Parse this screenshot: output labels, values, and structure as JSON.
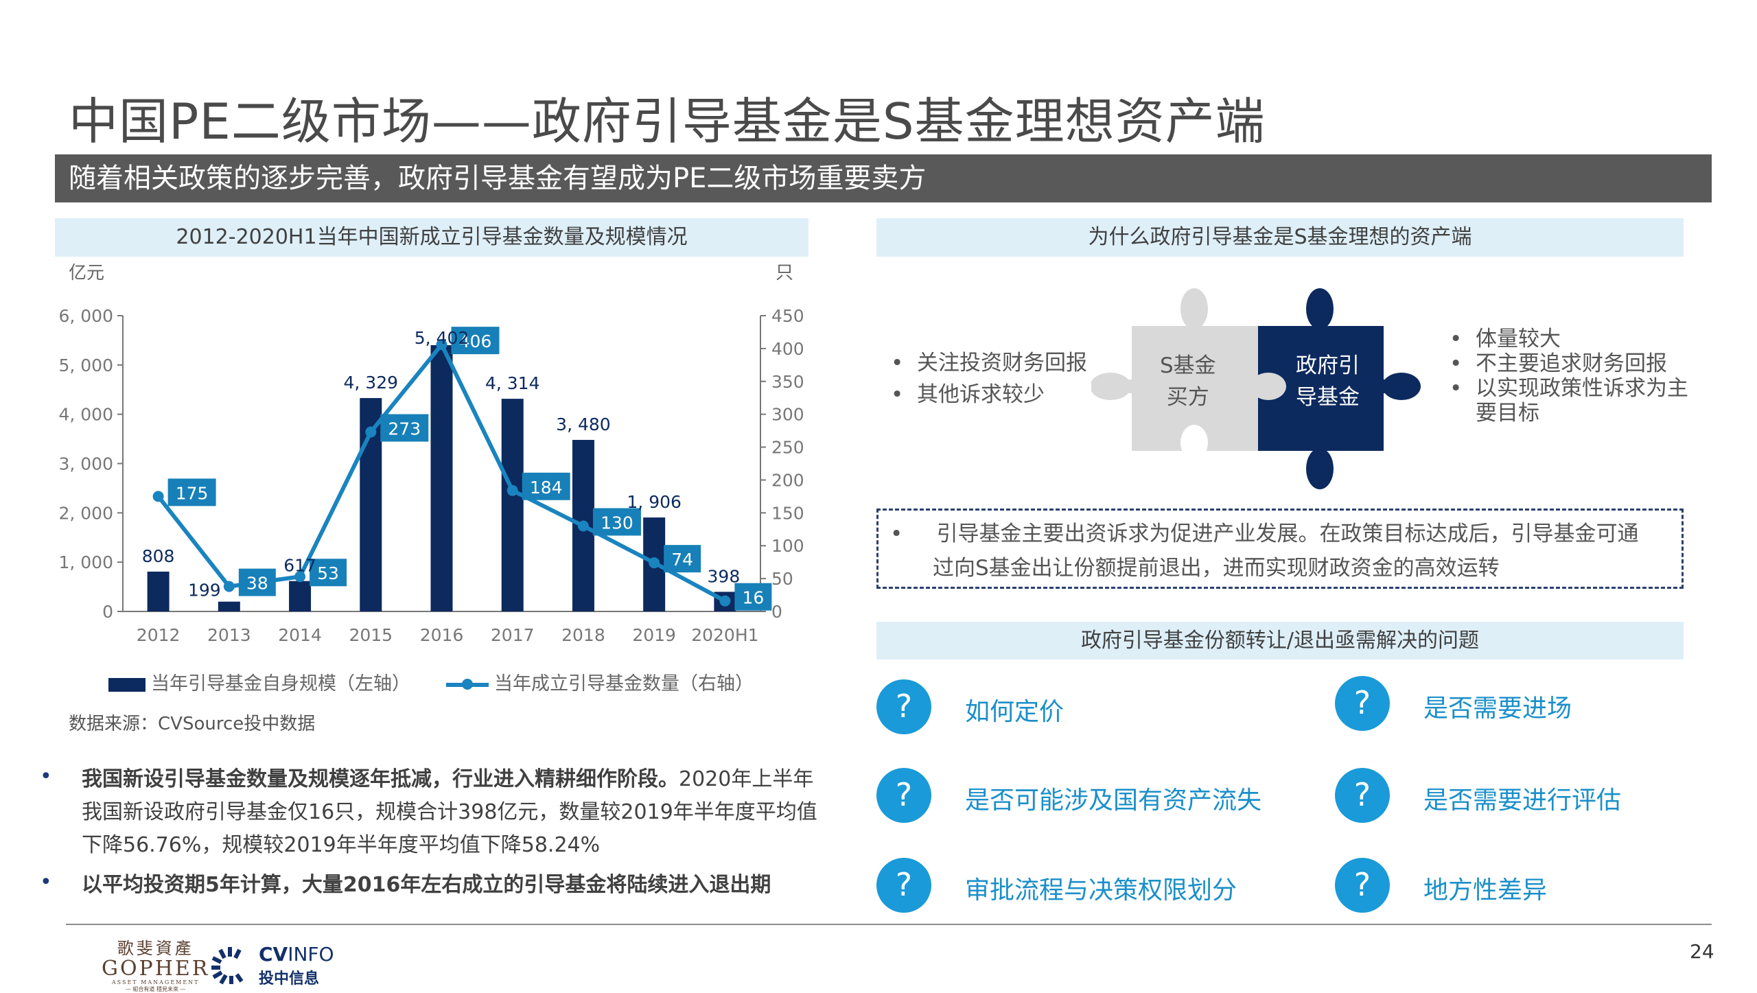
{
  "title": "中国PE二级市场——政府引导基金是S基金理想资产端",
  "banner": "随着相关政策的逐步完善，政府引导基金有望成为PE二级市场重要卖方",
  "left_panel": {
    "header": "2012-2020H1当年中国新成立引导基金数量及规模情况",
    "source": "数据来源：CVSource投中数据",
    "bullets": [
      {
        "bold": "我国新设引导基金数量及规模逐年抵减，行业进入精耕细作阶段。",
        "text": "2020年上半年我国新设政府引导基金仅16只，规模合计398亿元，数量较2019年半年度平均值下降56.76%，规模较2019年半年度平均值下降58.24%"
      },
      {
        "bold": "以平均投资期5年计算，大量2016年左右成立的引导基金将陆续进入退出期",
        "text": ""
      }
    ]
  },
  "chart_data": {
    "type": "bar+line",
    "categories": [
      "2012",
      "2013",
      "2014",
      "2015",
      "2016",
      "2017",
      "2018",
      "2019",
      "2020H1"
    ],
    "series": [
      {
        "name": "当年引导基金自身规模（左轴）",
        "type": "bar",
        "axis": "left",
        "values": [
          808,
          199,
          617,
          4329,
          5402,
          4314,
          3480,
          1906,
          398
        ],
        "labels": [
          "808",
          "199",
          "617",
          "4, 329",
          "5, 402",
          "4, 314",
          "3, 480",
          "1, 906",
          "398"
        ],
        "color": "#0c2a5e"
      },
      {
        "name": "当年成立引导基金数量（右轴）",
        "type": "line",
        "axis": "right",
        "values": [
          175,
          38,
          53,
          273,
          406,
          184,
          130,
          74,
          16
        ],
        "color": "#1a84bf"
      }
    ],
    "left_axis": {
      "unit": "亿元",
      "range": [
        0,
        6000
      ],
      "ticks": [
        "0",
        "1, 000",
        "2, 000",
        "3, 000",
        "4, 000",
        "5, 000",
        "6, 000"
      ]
    },
    "right_axis": {
      "unit": "只",
      "range": [
        0,
        450
      ],
      "ticks": [
        "0",
        "50",
        "100",
        "150",
        "200",
        "250",
        "300",
        "350",
        "400",
        "450"
      ]
    },
    "grid": false,
    "legend_position": "bottom"
  },
  "right_panel": {
    "header": "为什么政府引导基金是S基金理想的资产端",
    "left_bullets": [
      "关注投资财务回报",
      "其他诉求较少"
    ],
    "puzzle_left": [
      "S基金",
      "买方"
    ],
    "puzzle_right": [
      "政府引",
      "导基金"
    ],
    "right_bullets": [
      "体量较大",
      "不主要追求财务回报",
      "以实现政策性诉求为主",
      "要目标"
    ],
    "dashed_note": [
      "引导基金主要出资诉求为促进产业发展。在政策目标达成后，引导基金可通",
      "过向S基金出让份额提前退出，进而实现财政资金的高效运转"
    ],
    "issues_header": "政府引导基金份额转让/退出亟需解决的问题",
    "question_mark": "?",
    "issues": [
      "如何定价",
      "是否需要进场",
      "是否可能涉及国有资产流失",
      "是否需要进行评估",
      "审批流程与决策权限划分",
      "地方性差异"
    ]
  },
  "footer": {
    "page": "24",
    "logo_gopher": [
      "歌斐資產",
      "GOPHER",
      "ASSET MANAGEMENT",
      "— 組合有道 穩見未來 —"
    ],
    "logo_cvinfo": [
      "CV",
      "INFO",
      "投中信息"
    ]
  }
}
